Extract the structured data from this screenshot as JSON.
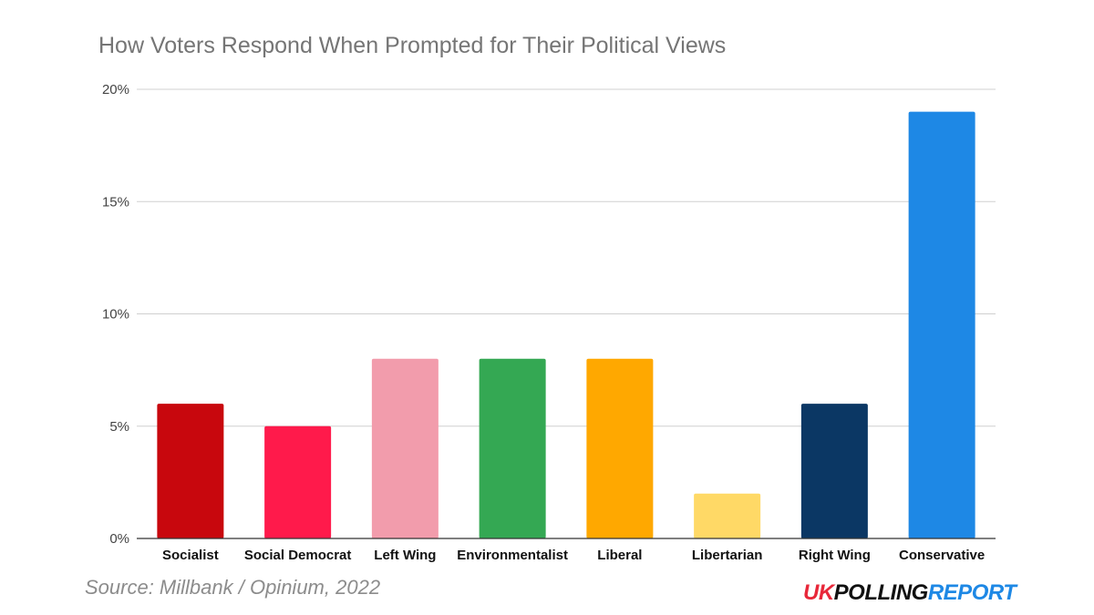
{
  "chart_data": {
    "type": "bar",
    "title": "How Voters Respond When Prompted for Their Political Views",
    "xlabel": "",
    "ylabel": "",
    "categories": [
      "Socialist",
      "Social Democrat",
      "Left Wing",
      "Environmentalist",
      "Liberal",
      "Libertarian",
      "Right Wing",
      "Conservative"
    ],
    "values": [
      6,
      5,
      8,
      8,
      8,
      2,
      6,
      19
    ],
    "colors": [
      "#c8070d",
      "#ff1a4b",
      "#f29cac",
      "#34a853",
      "#ffa800",
      "#ffd966",
      "#0b3764",
      "#1e88e5"
    ],
    "ylim": [
      0,
      20
    ],
    "yticks": [
      0,
      5,
      10,
      15,
      20
    ],
    "ytick_labels": [
      "0%",
      "5%",
      "10%",
      "15%",
      "20%"
    ],
    "grid": true,
    "legend": "none"
  },
  "footer": {
    "source": "Source: Millbank / Opinium, 2022"
  },
  "brand": {
    "part1": "UK",
    "part2": "POLLING",
    "part3": "REPORT",
    "colors": [
      "#e8283a",
      "#111111",
      "#1e88e5"
    ]
  }
}
